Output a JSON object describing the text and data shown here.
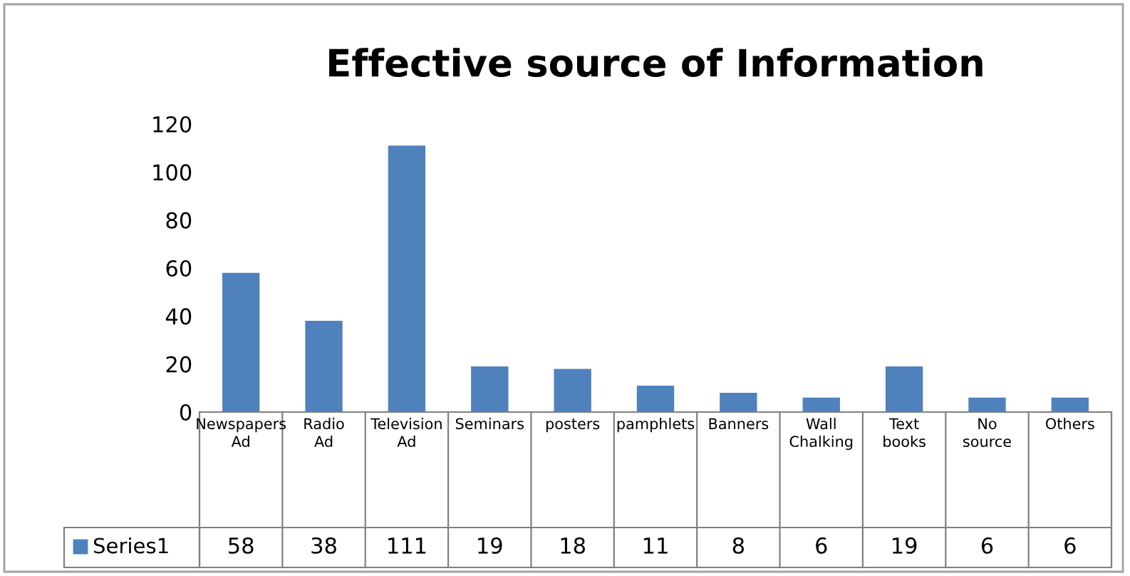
{
  "chart_data": {
    "type": "bar",
    "title": "Effective source of Information",
    "categories": [
      "Newspapers Ad",
      "Radio Ad",
      "Television Ad",
      "Seminars",
      "posters",
      "pamphlets",
      "Banners",
      "Wall Chalking",
      "Text books",
      "No source",
      "Others"
    ],
    "series": [
      {
        "name": "Series1",
        "color": "#4f81bd",
        "values": [
          58,
          38,
          111,
          19,
          18,
          11,
          8,
          6,
          19,
          6,
          6
        ]
      }
    ],
    "ylim": [
      0,
      120
    ],
    "yticks": [
      0,
      20,
      40,
      60,
      80,
      100,
      120
    ],
    "grid": false,
    "data_labels": true
  }
}
